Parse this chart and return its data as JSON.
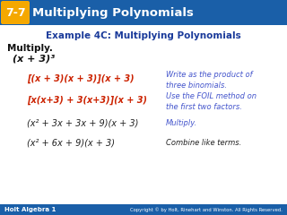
{
  "header_bg_left": "#1a5fa8",
  "header_bg_right": "#4aa0d0",
  "header_box_bg": "#f5a800",
  "header_title": "Multiplying Polynomials",
  "header_num": "7-7",
  "example_title": "Example 4C: Multiplying Polynomials",
  "multiply_label": "Multiply.",
  "problem": "(x + 3)³",
  "footer_bg": "#1a5fa8",
  "footer_left": "Holt Algebra 1",
  "footer_right": "Copyright © by Holt, Rinehart and Winston. All Rights Reserved.",
  "body_bg": "#ffffff",
  "steps": [
    {
      "expr": "[(x + 3)(x + 3)](x + 3)",
      "note1": "Write as the product of",
      "note2": "three binomials.",
      "expr_color": "#cc2200",
      "note_color": "#4455cc"
    },
    {
      "expr": "[x(x+3) + 3(x+3)](x + 3)",
      "note1": "Use the FOIL method on",
      "note2": "the first two factors.",
      "expr_color": "#cc2200",
      "note_color": "#4455cc"
    },
    {
      "expr": "(x² + 3x + 3x + 9)(x + 3)",
      "note1": "Multiply.",
      "note2": "",
      "expr_color": "#222222",
      "note_color": "#4455cc"
    },
    {
      "expr": "(x² + 6x + 9)(x + 3)",
      "note1": "Combine like terms.",
      "note2": "",
      "expr_color": "#222222",
      "note_color": "#222222"
    }
  ]
}
